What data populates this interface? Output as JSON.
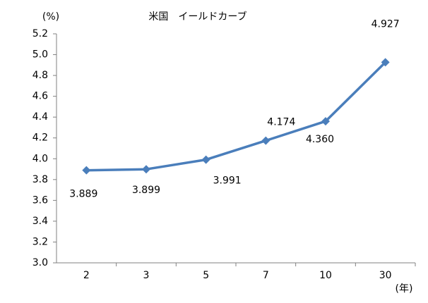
{
  "chart_data": {
    "type": "line",
    "title": "米国　イールドカーブ",
    "y_label": "(%)",
    "x_label": "(年)",
    "categories": [
      "2",
      "3",
      "5",
      "7",
      "10",
      "30"
    ],
    "series": [
      {
        "color": "#4a7ebb",
        "values": [
          3.889,
          3.899,
          3.991,
          4.174,
          4.36,
          4.927
        ],
        "value_labels": [
          "3.889",
          "3.899",
          "3.991",
          "4.174",
          "4.360",
          "4.927"
        ]
      }
    ],
    "ylim": [
      3.0,
      5.2
    ],
    "yticks": [
      {
        "value": 3,
        "label": "3.0"
      },
      3.2,
      3.4,
      3.6,
      3.8,
      {
        "value": 4,
        "label": "4.0"
      },
      4.2,
      4.4,
      4.6,
      4.8,
      {
        "value": 5,
        "label": "5.0"
      },
      5.2
    ],
    "grid": false
  }
}
